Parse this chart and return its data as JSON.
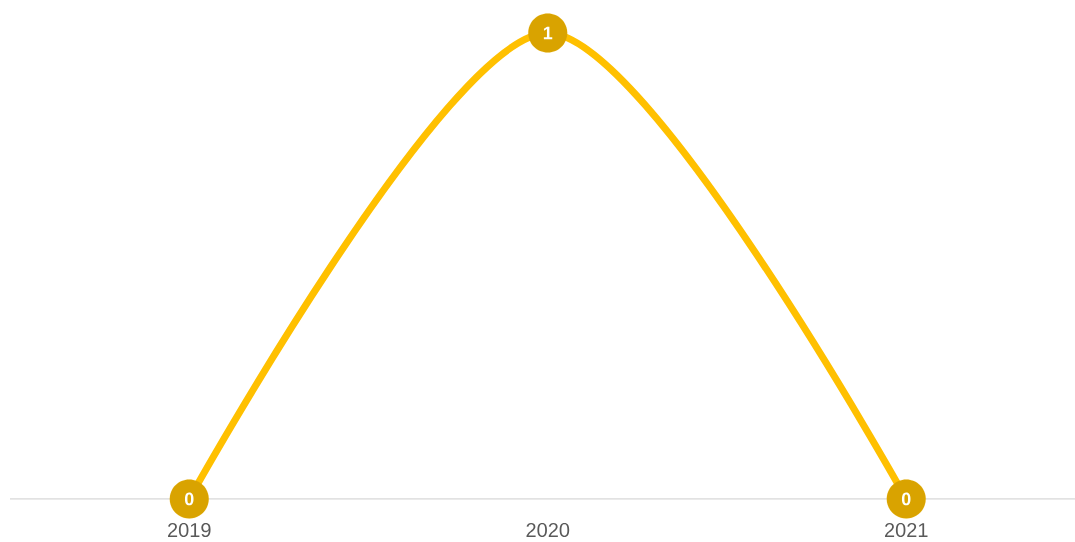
{
  "chart_data": {
    "type": "line",
    "categories": [
      "2019",
      "2020",
      "2021"
    ],
    "values": [
      0,
      1,
      0
    ],
    "color": "#ffc000",
    "data_labels": true,
    "marker": "circle",
    "line_style": "solid"
  }
}
